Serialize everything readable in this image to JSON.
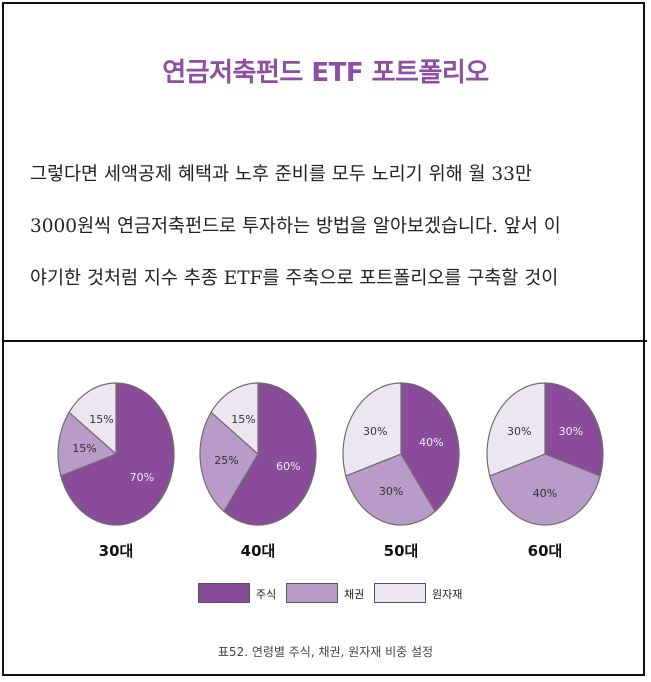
{
  "title": "연금저축펀드 ETF 포트폴리오",
  "body_lines": [
    "그렇다면 세액공제 혜택과 노후 준비를 모두 노리기 위해 월 33만",
    "3000원씩 연금저축펀드로 투자하는 방법을 알아보겠습니다. 앞서 이",
    "야기한 것처럼 지수 추종 ETF를 주축으로 포트폴리오를 구축할 것이"
  ],
  "colors": {
    "title": "#8e4ea3",
    "stock": "#8a4b9a",
    "bond": "#b89bc9",
    "commodity": "#ece6f1"
  },
  "chart_data": {
    "type": "pie",
    "series_names": [
      "주식",
      "채권",
      "원자재"
    ],
    "charts": [
      {
        "label": "30대",
        "values": [
          70,
          15,
          15
        ],
        "value_labels": [
          "70%",
          "15%",
          "15%"
        ]
      },
      {
        "label": "40대",
        "values": [
          60,
          25,
          15
        ],
        "value_labels": [
          "60%",
          "25%",
          "15%"
        ]
      },
      {
        "label": "50대",
        "values": [
          40,
          30,
          30
        ],
        "value_labels": [
          "40%",
          "30%",
          "30%"
        ]
      },
      {
        "label": "60대",
        "values": [
          30,
          40,
          30
        ],
        "value_labels": [
          "30%",
          "40%",
          "30%"
        ]
      }
    ],
    "legend_placement": "bottom",
    "caption": "표52. 연령별 주식, 채권, 원자재 비중 설정"
  }
}
